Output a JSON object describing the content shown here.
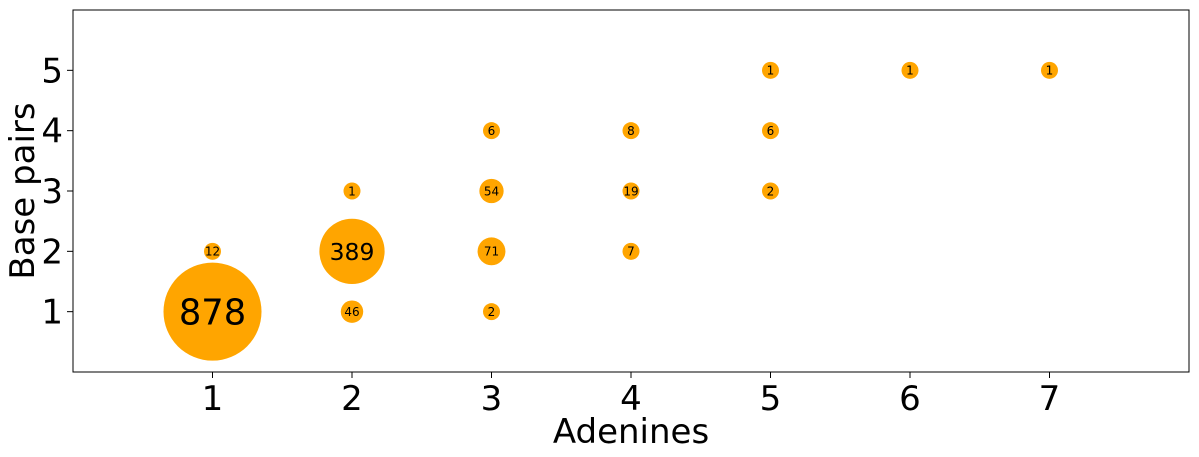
{
  "chart_data": {
    "type": "scatter",
    "xlabel": "Adenines",
    "ylabel": "Base pairs",
    "xlim": [
      0,
      8
    ],
    "ylim": [
      0,
      6
    ],
    "xticks": [
      1,
      2,
      3,
      4,
      5,
      6,
      7
    ],
    "yticks": [
      1,
      2,
      3,
      4,
      5
    ],
    "grid": false,
    "colors": {
      "bubble": "#ffa500",
      "axis": "#000000"
    },
    "points": [
      {
        "x": 1,
        "y": 1,
        "count": 878
      },
      {
        "x": 1,
        "y": 2,
        "count": 12
      },
      {
        "x": 2,
        "y": 1,
        "count": 46
      },
      {
        "x": 2,
        "y": 2,
        "count": 389
      },
      {
        "x": 2,
        "y": 3,
        "count": 1
      },
      {
        "x": 3,
        "y": 1,
        "count": 2
      },
      {
        "x": 3,
        "y": 2,
        "count": 71
      },
      {
        "x": 3,
        "y": 3,
        "count": 54
      },
      {
        "x": 3,
        "y": 4,
        "count": 6
      },
      {
        "x": 4,
        "y": 2,
        "count": 7
      },
      {
        "x": 4,
        "y": 3,
        "count": 19
      },
      {
        "x": 4,
        "y": 4,
        "count": 8
      },
      {
        "x": 5,
        "y": 3,
        "count": 2
      },
      {
        "x": 5,
        "y": 4,
        "count": 6
      },
      {
        "x": 5,
        "y": 5,
        "count": 1
      },
      {
        "x": 6,
        "y": 5,
        "count": 1
      },
      {
        "x": 7,
        "y": 5,
        "count": 1
      }
    ]
  }
}
